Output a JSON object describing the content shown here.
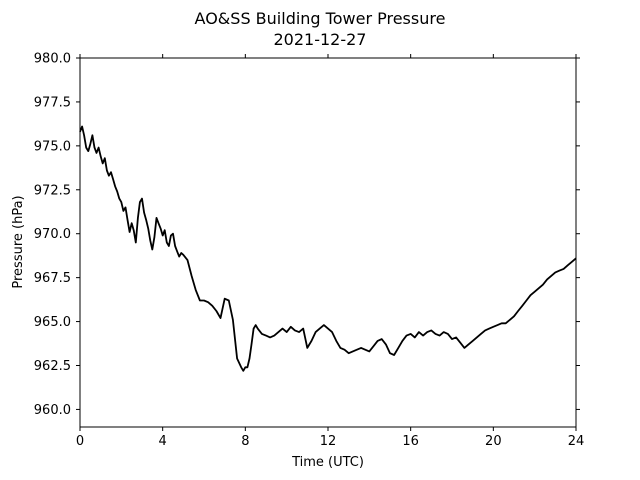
{
  "chart_data": {
    "type": "line",
    "title": "AO&SS Building Tower Pressure",
    "subtitle": "2021-12-27",
    "xlabel": "Time (UTC)",
    "ylabel": "Pressure (hPa)",
    "xlim": [
      0,
      24
    ],
    "ylim": [
      959.0,
      980.0
    ],
    "xticks": [
      0,
      4,
      8,
      12,
      16,
      20,
      24
    ],
    "xtick_labels": [
      "0",
      "4",
      "8",
      "12",
      "16",
      "20",
      "24"
    ],
    "yticks": [
      960.0,
      962.5,
      965.0,
      967.5,
      970.0,
      972.5,
      975.0,
      977.5,
      980.0
    ],
    "ytick_labels": [
      "960.0",
      "962.5",
      "965.0",
      "967.5",
      "970.0",
      "972.5",
      "975.0",
      "977.5",
      "980.0"
    ],
    "grid": false,
    "series": [
      {
        "color": "#000000",
        "x": [
          0.0,
          0.1,
          0.2,
          0.3,
          0.4,
          0.5,
          0.6,
          0.7,
          0.8,
          0.9,
          1.0,
          1.1,
          1.2,
          1.3,
          1.4,
          1.5,
          1.6,
          1.7,
          1.8,
          1.9,
          2.0,
          2.1,
          2.2,
          2.3,
          2.4,
          2.5,
          2.6,
          2.7,
          2.8,
          2.9,
          3.0,
          3.1,
          3.2,
          3.3,
          3.4,
          3.5,
          3.6,
          3.7,
          3.8,
          3.9,
          4.0,
          4.1,
          4.2,
          4.3,
          4.4,
          4.5,
          4.6,
          4.7,
          4.8,
          4.9,
          5.0,
          5.2,
          5.4,
          5.6,
          5.8,
          6.0,
          6.2,
          6.4,
          6.6,
          6.8,
          7.0,
          7.2,
          7.4,
          7.6,
          7.8,
          7.9,
          8.0,
          8.1,
          8.2,
          8.3,
          8.4,
          8.5,
          8.6,
          8.8,
          9.0,
          9.2,
          9.4,
          9.6,
          9.8,
          10.0,
          10.2,
          10.4,
          10.6,
          10.8,
          11.0,
          11.2,
          11.4,
          11.6,
          11.8,
          12.0,
          12.2,
          12.4,
          12.6,
          12.8,
          13.0,
          13.2,
          13.4,
          13.6,
          13.8,
          14.0,
          14.2,
          14.4,
          14.6,
          14.8,
          15.0,
          15.2,
          15.4,
          15.6,
          15.8,
          16.0,
          16.2,
          16.4,
          16.6,
          16.8,
          17.0,
          17.2,
          17.4,
          17.6,
          17.8,
          18.0,
          18.2,
          18.4,
          18.6,
          18.8,
          19.0,
          19.2,
          19.4,
          19.6,
          19.8,
          20.0,
          20.2,
          20.4,
          20.6,
          20.8,
          21.0,
          21.2,
          21.4,
          21.6,
          21.8,
          22.0,
          22.2,
          22.4,
          22.6,
          22.8,
          23.0,
          23.2,
          23.4,
          23.6,
          23.8,
          24.0
        ],
        "y": [
          975.8,
          976.1,
          975.6,
          974.9,
          974.7,
          975.1,
          975.6,
          974.9,
          974.6,
          974.9,
          974.4,
          974.0,
          974.3,
          973.6,
          973.3,
          973.5,
          973.1,
          972.7,
          972.4,
          972.0,
          971.8,
          971.3,
          971.5,
          970.8,
          970.1,
          970.6,
          970.2,
          969.5,
          970.9,
          971.8,
          972.0,
          971.2,
          970.8,
          970.3,
          969.6,
          969.1,
          969.8,
          970.9,
          970.6,
          970.3,
          969.9,
          970.2,
          969.5,
          969.3,
          969.9,
          970.0,
          969.3,
          969.0,
          968.7,
          968.9,
          968.8,
          968.5,
          967.6,
          966.8,
          966.2,
          966.2,
          966.1,
          965.9,
          965.6,
          965.2,
          966.3,
          966.2,
          965.1,
          962.9,
          962.4,
          962.2,
          962.4,
          962.4,
          962.9,
          963.7,
          964.6,
          964.8,
          964.6,
          964.3,
          964.2,
          964.1,
          964.2,
          964.4,
          964.6,
          964.4,
          964.7,
          964.5,
          964.4,
          964.6,
          963.5,
          963.9,
          964.4,
          964.6,
          964.8,
          964.6,
          964.4,
          963.9,
          963.5,
          963.4,
          963.2,
          963.3,
          963.4,
          963.5,
          963.4,
          963.3,
          963.6,
          963.9,
          964.0,
          963.7,
          963.2,
          963.1,
          963.5,
          963.9,
          964.2,
          964.3,
          964.1,
          964.4,
          964.2,
          964.4,
          964.5,
          964.3,
          964.2,
          964.4,
          964.3,
          964.0,
          964.1,
          963.8,
          963.5,
          963.7,
          963.9,
          964.1,
          964.3,
          964.5,
          964.6,
          964.7,
          964.8,
          964.9,
          964.9,
          965.1,
          965.3,
          965.6,
          965.9,
          966.2,
          966.5,
          966.7,
          966.9,
          967.1,
          967.4,
          967.6,
          967.8,
          967.9,
          968.0,
          968.2,
          968.4,
          968.6
        ]
      }
    ]
  }
}
